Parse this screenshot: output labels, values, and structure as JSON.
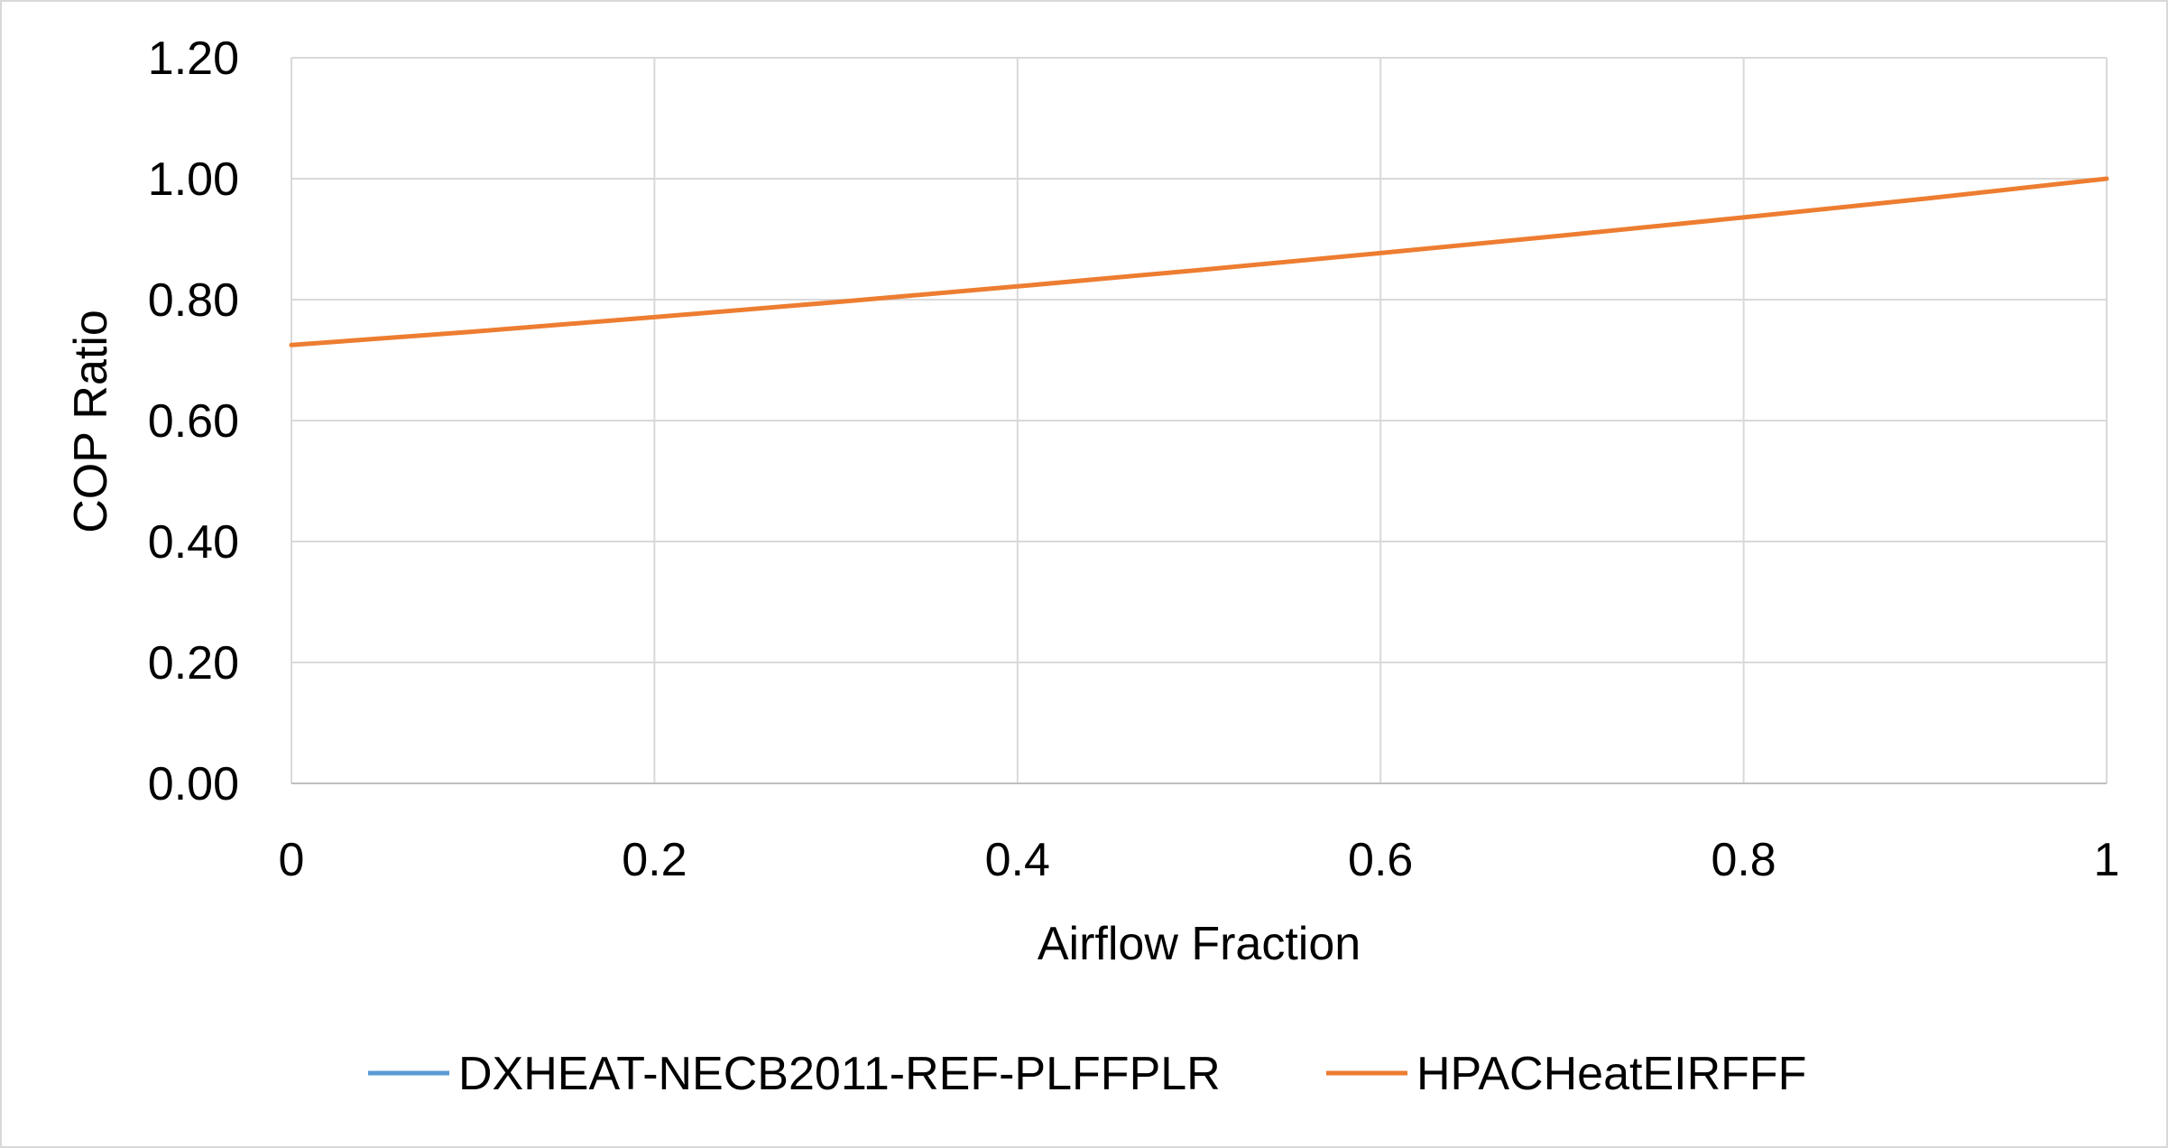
{
  "chart_data": {
    "type": "line",
    "title": "",
    "xlabel": "Airflow Fraction",
    "ylabel": "COP Ratio",
    "xlim": [
      0,
      1
    ],
    "ylim": [
      0,
      1.2
    ],
    "x_ticks": [
      "0",
      "0.2",
      "0.4",
      "0.6",
      "0.8",
      "1"
    ],
    "x_tick_values": [
      0,
      0.2,
      0.4,
      0.6,
      0.8,
      1
    ],
    "y_ticks": [
      "0.00",
      "0.20",
      "0.40",
      "0.60",
      "0.80",
      "1.00",
      "1.20"
    ],
    "y_tick_values": [
      0,
      0.2,
      0.4,
      0.6,
      0.8,
      1.0,
      1.2
    ],
    "grid": true,
    "legend_position": "bottom",
    "series": [
      {
        "name": "DXHEAT-NECB2011-REF-PLFFPLR",
        "color": "#5B9BD5",
        "x": [],
        "y": []
      },
      {
        "name": "HPACHeatEIRFFF",
        "color": "#ED7D31",
        "x": [
          0,
          0.1,
          0.2,
          0.3,
          0.4,
          0.5,
          0.6,
          0.7,
          0.8,
          0.9,
          1.0
        ],
        "y": [
          0.725,
          0.747,
          0.771,
          0.796,
          0.822,
          0.849,
          0.877,
          0.906,
          0.936,
          0.967,
          1.0
        ]
      }
    ]
  }
}
